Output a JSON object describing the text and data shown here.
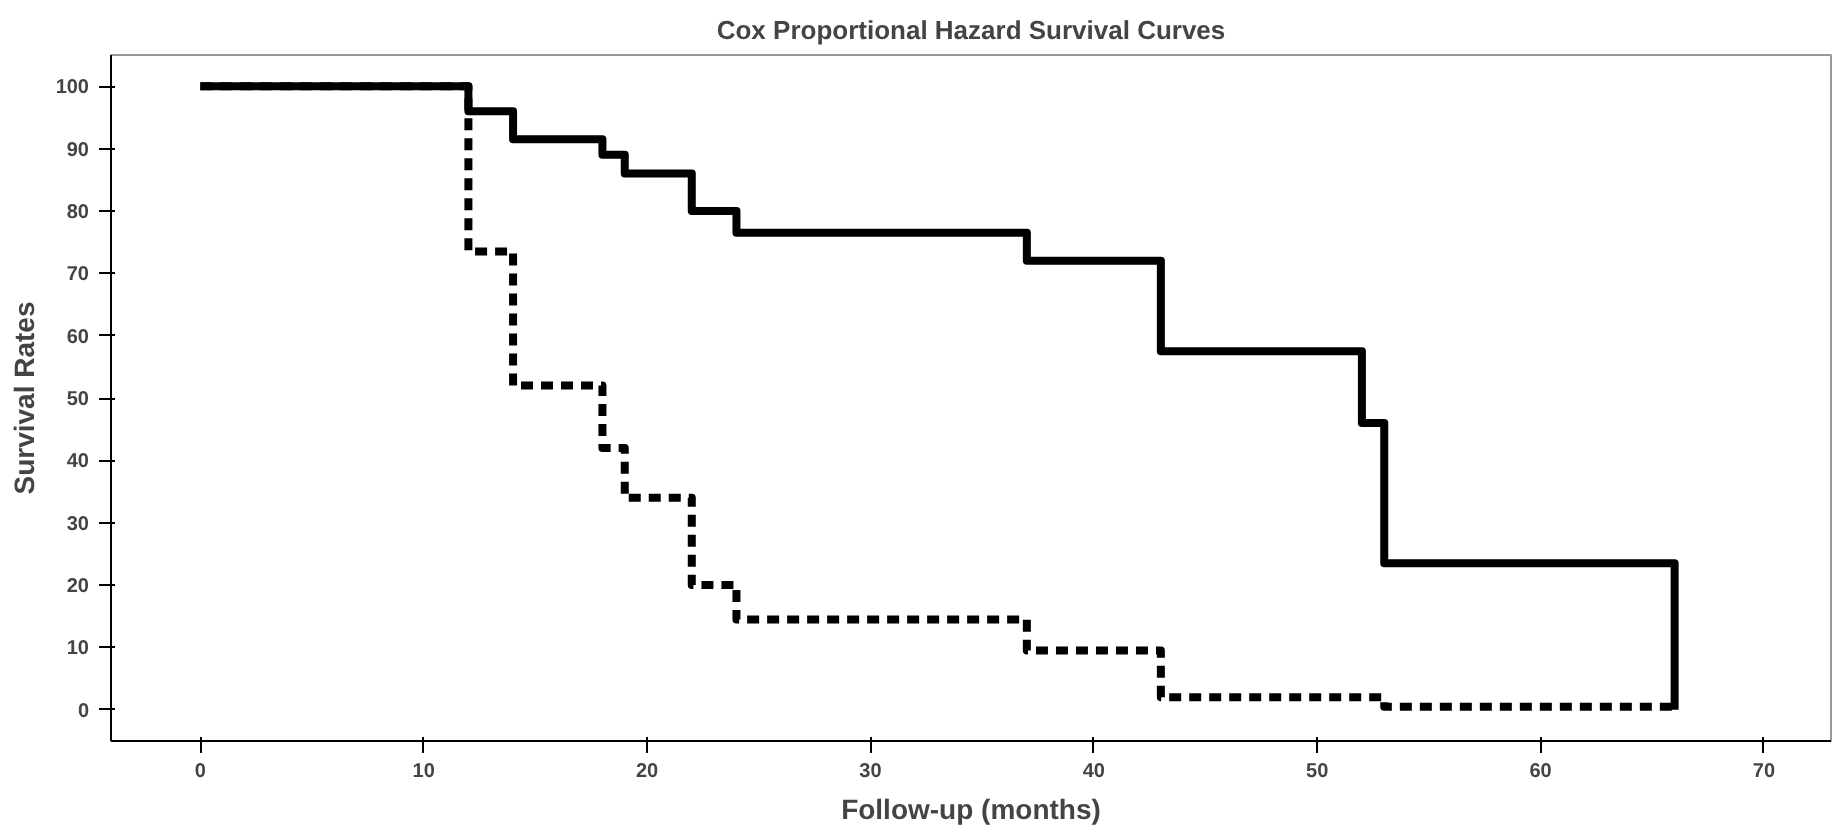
{
  "chart_data": {
    "type": "step",
    "title": "Cox Proportional Hazard Survival Curves",
    "xlabel": "Follow-up (months)",
    "ylabel": "Survival Rates",
    "series": [
      {
        "color": "#000000",
        "line_style": "solid",
        "x": [
          0,
          12,
          14,
          18,
          19,
          22,
          24,
          37,
          43,
          52,
          53,
          66
        ],
        "values": [
          100,
          96,
          91.5,
          89,
          86,
          80,
          76.5,
          72,
          57.5,
          46,
          23.5,
          0
        ]
      },
      {
        "color": "#000000",
        "line_style": "dashed",
        "x": [
          0,
          12,
          14,
          18,
          19,
          22,
          24,
          37,
          43,
          53,
          66
        ],
        "values": [
          100,
          73.5,
          52,
          42,
          34,
          20,
          14.5,
          9.5,
          2,
          0.5,
          0.5
        ]
      }
    ],
    "xlim": [
      -4,
      73
    ],
    "ylim": [
      -5,
      105
    ],
    "xticks": [
      0,
      10,
      20,
      30,
      40,
      50,
      60,
      70
    ],
    "yticks": [
      0,
      10,
      20,
      30,
      40,
      50,
      60,
      70,
      80,
      90,
      100
    ],
    "grid": false
  }
}
